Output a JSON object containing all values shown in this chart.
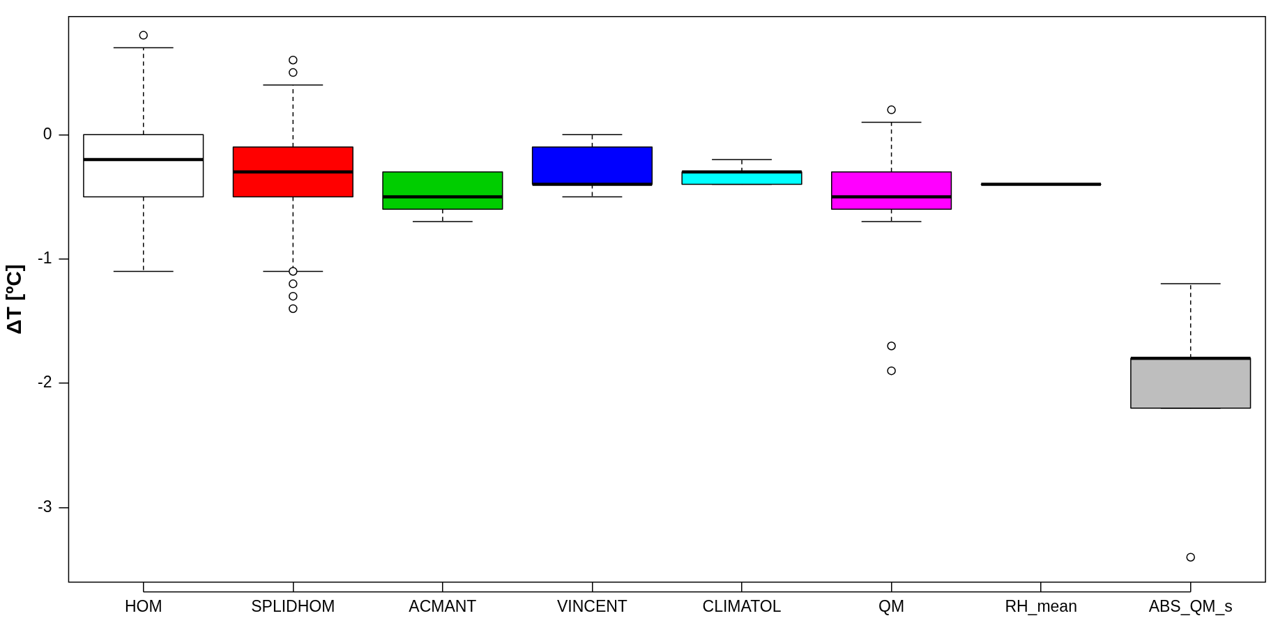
{
  "chart_data": {
    "type": "box",
    "ylabel": "ΔT [ºC]",
    "categories": [
      "HOM",
      "SPLIDHOM",
      "ACMANT",
      "VINCENT",
      "CLIMATOL",
      "QM",
      "RH_mean",
      "ABS_QM_s"
    ],
    "colors": [
      "#ffffff",
      "#ff0000",
      "#00cd00",
      "#0000ff",
      "#00ffff",
      "#ff00ff",
      "#000000",
      "#bebebe"
    ],
    "boxes": [
      {
        "low": -1.1,
        "q1": -0.5,
        "median": -0.2,
        "q3": 0,
        "high": 0.7,
        "outliers": [
          0.8
        ]
      },
      {
        "low": -1.1,
        "q1": -0.5,
        "median": -0.3,
        "q3": -0.1,
        "high": 0.4,
        "outliers": [
          0.6,
          0.5,
          -1.1,
          -1.2,
          -1.3,
          -1.4
        ]
      },
      {
        "low": -0.7,
        "q1": -0.6,
        "median": -0.5,
        "q3": -0.3,
        "high": -0.3
      },
      {
        "low": -0.5,
        "q1": -0.4,
        "median": -0.4,
        "q3": -0.1,
        "high": 0
      },
      {
        "low": -0.4,
        "q1": -0.4,
        "median": -0.3,
        "q3": -0.3,
        "high": -0.2
      },
      {
        "low": -0.7,
        "q1": -0.6,
        "median": -0.5,
        "q3": -0.3,
        "high": 0.1,
        "outliers": [
          0.2,
          -1.7,
          -1.9
        ]
      },
      {
        "low": -0.4,
        "q1": -0.4,
        "median": -0.4,
        "q3": -0.4,
        "high": -0.4
      },
      {
        "low": -2.2,
        "q1": -2.2,
        "median": -1.8,
        "q3": -1.8,
        "high": -1.2,
        "outliers": [
          -3.4
        ]
      }
    ],
    "ylim": [
      -3.6,
      0.95
    ],
    "yticks": [
      0,
      -1,
      -2,
      -3
    ],
    "grid": false
  }
}
